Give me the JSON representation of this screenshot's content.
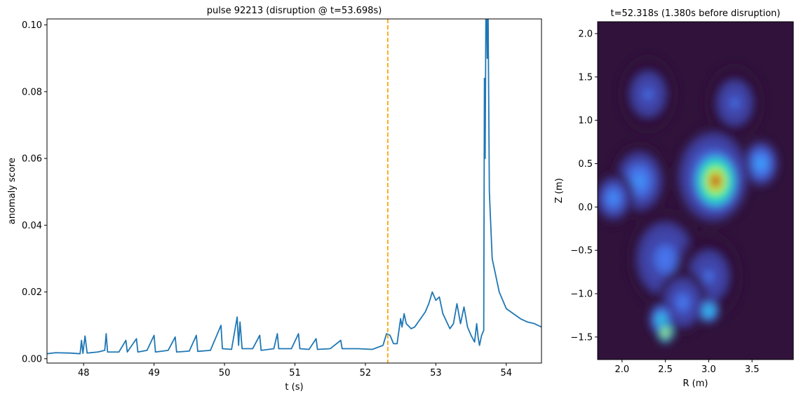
{
  "chart_data": [
    {
      "type": "line",
      "title": "pulse 92213 (disruption @ t=53.698s)",
      "xlabel": "t (s)",
      "ylabel": "anomaly score",
      "xlim": [
        47.48,
        54.5
      ],
      "ylim": [
        -0.0013,
        0.1018
      ],
      "xticks": [
        48,
        49,
        50,
        51,
        52,
        53,
        54
      ],
      "yticks": [
        {
          "value": 0,
          "label": "0.00"
        },
        0.02,
        0.04,
        0.06,
        0.08,
        {
          "value": 0.1,
          "label": "0.10"
        }
      ],
      "vline": {
        "x": 52.318,
        "color": "#ffa500"
      },
      "x": [
        47.48,
        47.6,
        47.8,
        47.95,
        47.97,
        47.99,
        48.02,
        48.05,
        48.2,
        48.3,
        48.32,
        48.34,
        48.5,
        48.6,
        48.62,
        48.75,
        48.77,
        48.9,
        49.0,
        49.02,
        49.2,
        49.3,
        49.32,
        49.5,
        49.6,
        49.62,
        49.8,
        49.95,
        49.97,
        50.1,
        50.18,
        50.2,
        50.22,
        50.25,
        50.4,
        50.5,
        50.52,
        50.7,
        50.75,
        50.77,
        50.95,
        51.05,
        51.07,
        51.2,
        51.3,
        51.32,
        51.5,
        51.65,
        51.67,
        51.9,
        52.1,
        52.25,
        52.3,
        52.35,
        52.4,
        52.45,
        52.5,
        52.52,
        52.55,
        52.58,
        52.65,
        52.7,
        52.8,
        52.85,
        52.9,
        52.95,
        53.0,
        53.05,
        53.1,
        53.2,
        53.25,
        53.3,
        53.35,
        53.4,
        53.45,
        53.5,
        53.55,
        53.58,
        53.6,
        53.62,
        53.65,
        53.68,
        53.69,
        53.7,
        53.715,
        53.73,
        53.74,
        53.76,
        53.8,
        53.9,
        54.0,
        54.1,
        54.2,
        54.3,
        54.4,
        54.5
      ],
      "series": [
        {
          "color": "#1f77b4",
          "values": [
            0.0015,
            0.0018,
            0.0017,
            0.0015,
            0.0055,
            0.0016,
            0.0068,
            0.0017,
            0.002,
            0.0025,
            0.0075,
            0.002,
            0.002,
            0.0055,
            0.002,
            0.006,
            0.002,
            0.0025,
            0.007,
            0.002,
            0.0025,
            0.0065,
            0.002,
            0.0023,
            0.007,
            0.0022,
            0.0025,
            0.01,
            0.003,
            0.0028,
            0.0125,
            0.004,
            0.011,
            0.003,
            0.003,
            0.007,
            0.0025,
            0.003,
            0.0075,
            0.003,
            0.003,
            0.0075,
            0.003,
            0.0028,
            0.006,
            0.0028,
            0.003,
            0.0055,
            0.003,
            0.003,
            0.0028,
            0.004,
            0.0075,
            0.007,
            0.0045,
            0.0045,
            0.012,
            0.0095,
            0.0135,
            0.0105,
            0.009,
            0.0095,
            0.0125,
            0.014,
            0.0165,
            0.02,
            0.0175,
            0.0185,
            0.0135,
            0.009,
            0.0105,
            0.0165,
            0.0105,
            0.0155,
            0.0095,
            0.007,
            0.005,
            0.0105,
            0.0065,
            0.004,
            0.007,
            0.0085,
            0.084,
            0.06,
            0.12,
            0.09,
            0.11,
            0.05,
            0.03,
            0.02,
            0.015,
            0.0135,
            0.012,
            0.011,
            0.0105,
            0.0095
          ]
        }
      ]
    },
    {
      "type": "heatmap",
      "title": "t=52.318s (1.380s before disruption)",
      "xlabel": "R (m)",
      "ylabel": "Z (m)",
      "cmap": "turbo",
      "xlim": [
        1.718,
        3.976
      ],
      "ylim": [
        -1.76,
        2.137
      ],
      "xticks": [
        {
          "value": 2,
          "label": "2.0"
        },
        2.5,
        {
          "value": 3,
          "label": "3.0"
        },
        3.5
      ],
      "yticks": [
        {
          "value": -1.5,
          "label": "−1.5"
        },
        {
          "value": -1,
          "label": "−1.0"
        },
        {
          "value": -0.5,
          "label": "−0.5"
        },
        {
          "value": 0,
          "label": "0.0"
        },
        0.5,
        {
          "value": 1,
          "label": "1.0"
        },
        1.5,
        {
          "value": 2,
          "label": "2.0"
        }
      ],
      "blobs": [
        {
          "r": 2.3,
          "z": 1.3,
          "size": 0.35,
          "value": 0.22
        },
        {
          "r": 3.3,
          "z": 1.2,
          "size": 0.35,
          "value": 0.22
        },
        {
          "r": 2.2,
          "z": 0.3,
          "size": 0.35,
          "value": 0.3
        },
        {
          "r": 1.9,
          "z": 0.1,
          "size": 0.25,
          "value": 0.3
        },
        {
          "r": 3.6,
          "z": 0.5,
          "size": 0.22,
          "value": 0.38
        },
        {
          "r": 2.5,
          "z": -0.6,
          "size": 0.45,
          "value": 0.25
        },
        {
          "r": 3.0,
          "z": -0.8,
          "size": 0.4,
          "value": 0.2
        },
        {
          "r": 2.7,
          "z": -1.1,
          "size": 0.3,
          "value": 0.25
        },
        {
          "r": 3.05,
          "z": 0.35,
          "size": 0.45,
          "value": 0.45
        },
        {
          "r": 3.08,
          "z": 0.3,
          "size": 0.3,
          "value": 1.0
        },
        {
          "r": 2.45,
          "z": -1.3,
          "size": 0.15,
          "value": 0.5
        },
        {
          "r": 2.5,
          "z": -1.45,
          "size": 0.1,
          "value": 0.95
        },
        {
          "r": 3.0,
          "z": -1.2,
          "size": 0.12,
          "value": 0.55
        }
      ]
    }
  ]
}
